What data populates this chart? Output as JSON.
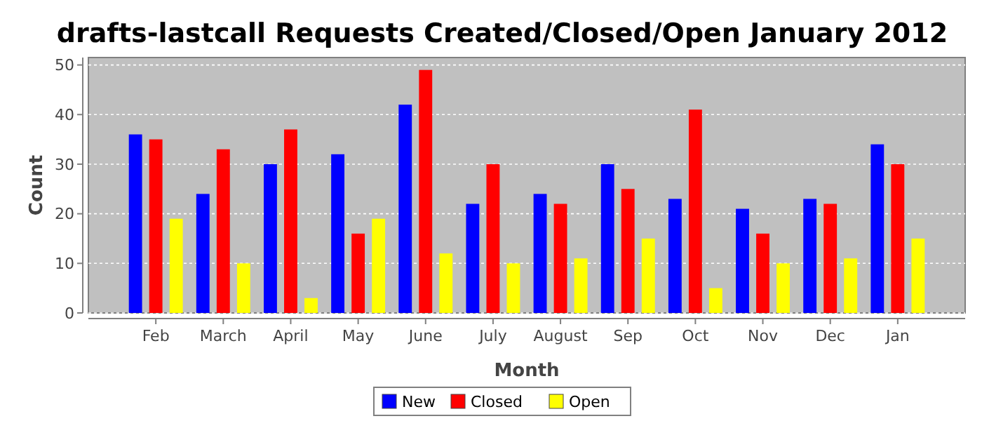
{
  "chart_data": {
    "type": "bar",
    "title": "drafts-lastcall Requests Created/Closed/Open January 2012",
    "xlabel": "Month",
    "ylabel": "Count",
    "categories": [
      "Feb",
      "March",
      "April",
      "May",
      "June",
      "July",
      "August",
      "Sep",
      "Oct",
      "Nov",
      "Dec",
      "Jan"
    ],
    "series": [
      {
        "name": "New",
        "color": "#0000ff",
        "values": [
          36,
          24,
          30,
          32,
          42,
          22,
          24,
          30,
          23,
          21,
          23,
          34
        ]
      },
      {
        "name": "Closed",
        "color": "#ff0000",
        "values": [
          35,
          33,
          37,
          16,
          49,
          30,
          22,
          25,
          41,
          16,
          22,
          30
        ]
      },
      {
        "name": "Open",
        "color": "#ffff00",
        "values": [
          19,
          10,
          3,
          19,
          12,
          10,
          11,
          15,
          5,
          10,
          11,
          15
        ]
      }
    ],
    "ylim": [
      0,
      51.5
    ],
    "yticks": [
      0,
      10,
      20,
      30,
      40,
      50
    ],
    "grid": "y",
    "legend": "bottom"
  }
}
